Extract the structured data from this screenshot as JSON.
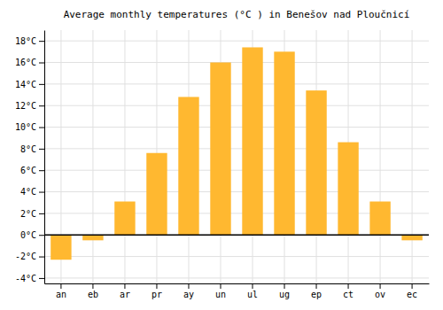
{
  "chart_data": {
    "type": "bar",
    "title": "Average monthly temperatures (°C ) in Benešov nad Ploučnicí",
    "categories": [
      "an",
      "eb",
      "ar",
      "pr",
      "ay",
      "un",
      "ul",
      "ug",
      "ep",
      "ct",
      "ov",
      "ec"
    ],
    "values": [
      -2.3,
      -0.5,
      3.1,
      7.6,
      12.8,
      16.0,
      17.4,
      17.0,
      13.4,
      8.6,
      3.1,
      -0.5
    ],
    "color": "#FFB830",
    "ylim": [
      -4.5,
      19
    ],
    "yticks": [
      {
        "value": -4,
        "label": "-4°C"
      },
      {
        "value": -2,
        "label": "-2°C"
      },
      {
        "value": 0,
        "label": "0°C"
      },
      {
        "value": 2,
        "label": "2°C"
      },
      {
        "value": 4,
        "label": "4°C"
      },
      {
        "value": 6,
        "label": "6°C"
      },
      {
        "value": 8,
        "label": "8°C"
      },
      {
        "value": 10,
        "label": "10°C"
      },
      {
        "value": 12,
        "label": "12°C"
      },
      {
        "value": 14,
        "label": "14°C"
      },
      {
        "value": 16,
        "label": "16°C"
      },
      {
        "value": 18,
        "label": "18°C"
      }
    ],
    "grid": true
  }
}
